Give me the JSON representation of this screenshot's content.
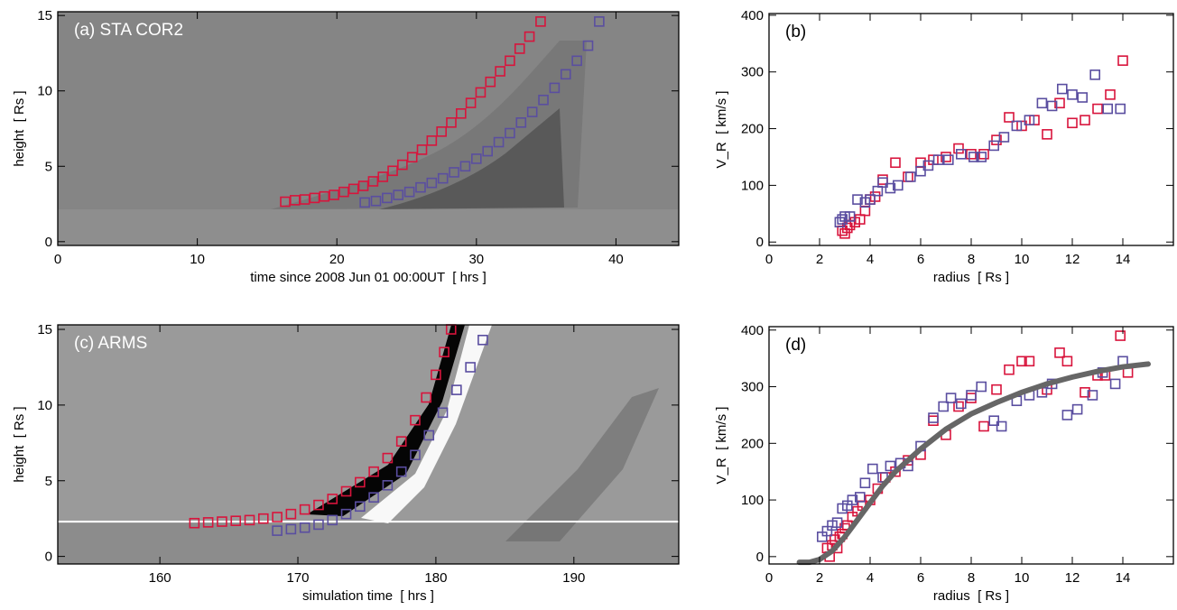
{
  "chart_data": [
    {
      "type": "scatter",
      "title": "(a) STA COR2",
      "xlabel": "time since 2008 Jun 01 00:00UT  [ hrs ]",
      "ylabel": "height  [ Rs ]",
      "xlim": [
        0,
        44.5
      ],
      "ylim": [
        -0.25,
        15.25
      ],
      "xticks": [
        0,
        10,
        20,
        30,
        40
      ],
      "yticks": [
        0,
        5,
        10,
        15
      ],
      "series": [
        {
          "color": "#d8143c",
          "x": [
            16.3,
            17,
            17.7,
            18.4,
            19.1,
            19.8,
            20.5,
            21.2,
            21.9,
            22.6,
            23.3,
            24,
            24.7,
            25.4,
            26.1,
            26.8,
            27.5,
            28.2,
            28.9,
            29.6,
            30.3,
            31,
            31.7,
            32.4,
            33.1,
            33.8,
            34.6
          ],
          "values": [
            2.65,
            2.75,
            2.8,
            2.9,
            3.0,
            3.1,
            3.3,
            3.5,
            3.7,
            4.0,
            4.3,
            4.7,
            5.1,
            5.6,
            6.1,
            6.7,
            7.3,
            7.9,
            8.5,
            9.2,
            9.9,
            10.6,
            11.3,
            12.0,
            12.8,
            13.6,
            14.6
          ]
        },
        {
          "color": "#5a4ea0",
          "x": [
            22,
            22.8,
            23.6,
            24.4,
            25.2,
            26,
            26.8,
            27.6,
            28.4,
            29.2,
            30,
            30.8,
            31.6,
            32.4,
            33.2,
            34,
            34.8,
            35.6,
            36.4,
            37.2,
            38,
            38.8
          ],
          "values": [
            2.6,
            2.7,
            2.9,
            3.1,
            3.3,
            3.6,
            3.9,
            4.2,
            4.6,
            5.0,
            5.5,
            6.0,
            6.6,
            7.2,
            7.9,
            8.6,
            9.4,
            10.2,
            11.1,
            12.0,
            13.0,
            14.6
          ]
        }
      ]
    },
    {
      "type": "scatter",
      "title": "(b)",
      "xlabel": "radius  [ Rs ]",
      "ylabel": "V_R  [ km/s ]",
      "xlim": [
        0,
        16
      ],
      "ylim": [
        -6,
        403
      ],
      "xticks": [
        0,
        2,
        4,
        6,
        8,
        10,
        12,
        14
      ],
      "yticks": [
        0,
        100,
        200,
        300,
        400
      ],
      "series": [
        {
          "color": "#d8143c",
          "x": [
            2.9,
            3,
            3.1,
            3.2,
            3.4,
            3.6,
            3.8,
            4,
            4.2,
            4.5,
            5,
            5.5,
            6,
            6.5,
            7,
            7.5,
            8,
            8.5,
            9,
            9.5,
            10,
            10.5,
            11,
            11.5,
            12,
            12.5,
            13,
            13.5,
            14
          ],
          "values": [
            20,
            15,
            25,
            30,
            35,
            40,
            55,
            75,
            80,
            110,
            140,
            115,
            140,
            145,
            150,
            165,
            155,
            155,
            180,
            220,
            205,
            215,
            190,
            245,
            210,
            215,
            235,
            260,
            320
          ]
        },
        {
          "color": "#5a4ea0",
          "x": [
            2.8,
            2.9,
            3,
            3.2,
            3.5,
            3.8,
            4,
            4.3,
            4.5,
            4.8,
            5.1,
            5.6,
            6,
            6.3,
            6.7,
            7.1,
            7.6,
            8.1,
            8.4,
            8.9,
            9.3,
            9.8,
            10.3,
            10.8,
            11.2,
            11.6,
            12,
            12.4,
            12.9,
            13.4,
            13.9
          ],
          "values": [
            35,
            40,
            45,
            45,
            75,
            70,
            75,
            90,
            105,
            95,
            100,
            115,
            125,
            135,
            145,
            145,
            155,
            150,
            150,
            170,
            185,
            205,
            215,
            245,
            240,
            270,
            260,
            255,
            295,
            235,
            235
          ]
        }
      ]
    },
    {
      "type": "scatter",
      "title": "(c) ARMS",
      "xlabel": "simulation time  [ hrs ]",
      "ylabel": "height  [ Rs ]",
      "xlim": [
        152.6,
        197.6
      ],
      "ylim": [
        -0.5,
        15.3
      ],
      "xticks": [
        160,
        170,
        180,
        190
      ],
      "yticks": [
        0,
        5,
        10,
        15
      ],
      "hline": 2.3,
      "series": [
        {
          "color": "#d8143c",
          "x": [
            162.5,
            163.5,
            164.5,
            165.5,
            166.5,
            167.5,
            168.5,
            169.5,
            170.5,
            171.5,
            172.5,
            173.5,
            174.5,
            175.5,
            176.5,
            177.5,
            178.5,
            179.3,
            180,
            180.6,
            181.1
          ],
          "values": [
            2.2,
            2.25,
            2.3,
            2.35,
            2.4,
            2.5,
            2.6,
            2.8,
            3.1,
            3.4,
            3.8,
            4.3,
            4.9,
            5.6,
            6.5,
            7.6,
            9.0,
            10.5,
            12,
            13.5,
            15
          ]
        },
        {
          "color": "#5a4ea0",
          "x": [
            168.5,
            169.5,
            170.5,
            171.5,
            172.5,
            173.5,
            174.5,
            175.5,
            176.5,
            177.5,
            178.5,
            179.5,
            180.5,
            181.5,
            182.5,
            183.4
          ],
          "values": [
            1.7,
            1.8,
            1.9,
            2.1,
            2.4,
            2.8,
            3.3,
            3.9,
            4.7,
            5.6,
            6.7,
            8.0,
            9.5,
            11.0,
            12.5,
            14.3
          ]
        }
      ]
    },
    {
      "type": "scatter",
      "title": "(d)",
      "xlabel": "radius  [ Rs ]",
      "ylabel": "V_R  [ km/s ]",
      "xlim": [
        0,
        16
      ],
      "ylim": [
        -13,
        406
      ],
      "xticks": [
        0,
        2,
        4,
        6,
        8,
        10,
        12,
        14
      ],
      "yticks": [
        0,
        100,
        200,
        300,
        400
      ],
      "series": [
        {
          "color": "#d8143c",
          "x": [
            2.3,
            2.4,
            2.5,
            2.6,
            2.7,
            2.8,
            2.9,
            3,
            3.1,
            3.3,
            3.5,
            3.7,
            4,
            4.3,
            4.6,
            5,
            5.5,
            6,
            6.5,
            7,
            7.5,
            8,
            8.5,
            9,
            9.5,
            10,
            10.3,
            11,
            11.5,
            11.8,
            12.5,
            13,
            13.3,
            13.9,
            14.2
          ],
          "values": [
            15,
            0,
            20,
            30,
            15,
            35,
            40,
            50,
            55,
            70,
            80,
            90,
            100,
            120,
            140,
            150,
            170,
            180,
            240,
            215,
            265,
            280,
            230,
            295,
            330,
            345,
            345,
            295,
            360,
            345,
            290,
            320,
            320,
            390,
            325
          ]
        },
        {
          "color": "#5a4ea0",
          "x": [
            2.1,
            2.3,
            2.5,
            2.7,
            2.9,
            3.1,
            3.3,
            3.6,
            3.8,
            4.1,
            4.5,
            4.8,
            5.2,
            5.5,
            6,
            6.5,
            6.9,
            7.2,
            7.6,
            8,
            8.4,
            8.9,
            9.2,
            9.8,
            10.3,
            10.8,
            11.2,
            11.8,
            12.2,
            12.8,
            13.2,
            13.7,
            14
          ],
          "values": [
            35,
            45,
            55,
            60,
            85,
            90,
            100,
            105,
            130,
            155,
            140,
            160,
            165,
            160,
            195,
            245,
            265,
            280,
            270,
            285,
            300,
            240,
            230,
            275,
            285,
            290,
            305,
            250,
            260,
            285,
            325,
            305,
            345
          ]
        },
        {
          "color": "#666666",
          "mode": "line",
          "x": [
            1.2,
            1.6,
            2,
            2.5,
            3,
            3.5,
            4,
            4.5,
            5,
            6,
            7,
            8,
            9,
            10,
            11,
            12,
            13,
            14,
            15
          ],
          "values": [
            -10,
            -10,
            -5,
            10,
            35,
            65,
            95,
            125,
            150,
            190,
            225,
            252,
            272,
            290,
            305,
            317,
            327,
            335,
            340
          ]
        }
      ]
    }
  ]
}
